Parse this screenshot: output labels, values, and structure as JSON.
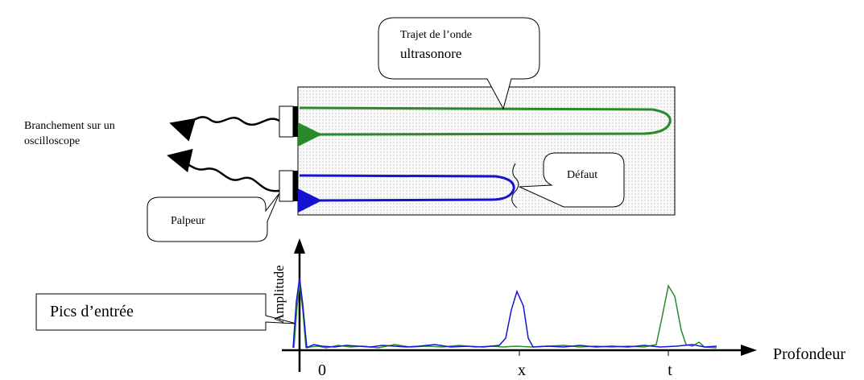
{
  "labels": {
    "path_title": [
      "Trajet de l’onde",
      "ultrasonore"
    ],
    "connection": [
      "Branchement sur un",
      "oscilloscope"
    ],
    "defect": "Défaut",
    "probe": "Palpeur",
    "input_peaks": "Pics d’entrée"
  },
  "axes": {
    "y_label": "Amplitude",
    "x_label": "Profondeur",
    "x_marks": [
      "0",
      "x",
      "t"
    ]
  }
}
